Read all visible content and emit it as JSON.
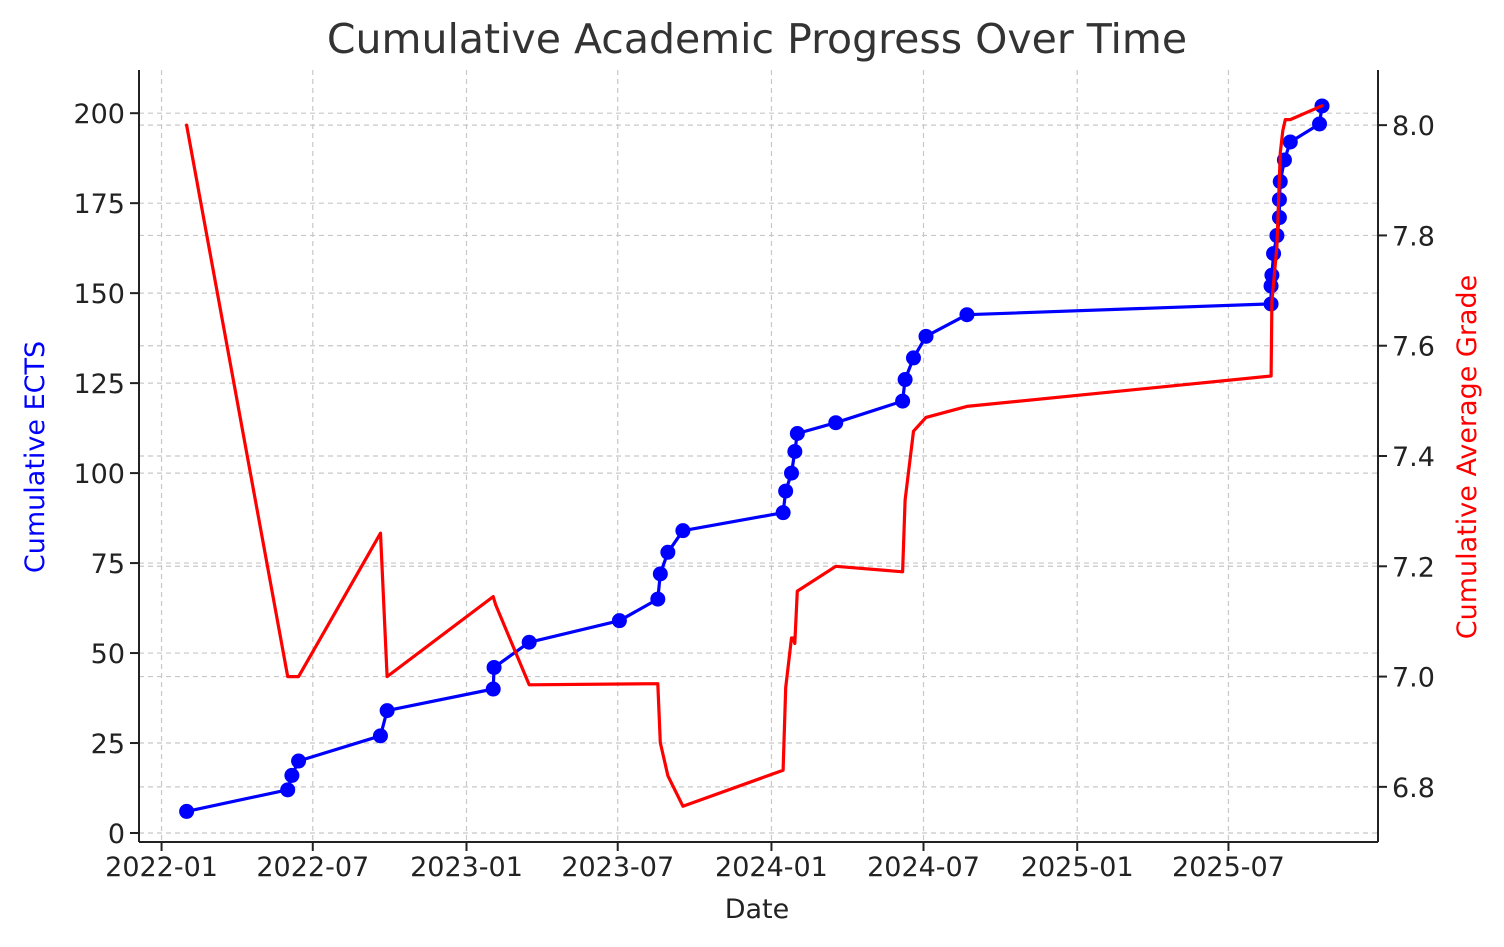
{
  "chart_data": {
    "type": "line",
    "title": "Cumulative Academic Progress Over Time",
    "xlabel": "Date",
    "ylabel_left": "Cumulative ECTS",
    "ylabel_right": "Cumulative Average Grade",
    "x_ticks": [
      "2022-01",
      "2022-07",
      "2023-01",
      "2023-07",
      "2024-01",
      "2024-07",
      "2025-01",
      "2025-07"
    ],
    "y_left_ticks": [
      0,
      25,
      50,
      75,
      100,
      125,
      150,
      175,
      200
    ],
    "y_right_ticks": [
      "6.8",
      "7.0",
      "7.2",
      "7.4",
      "7.6",
      "7.8",
      "8.0"
    ],
    "ylim_left": [
      -2.5,
      212
    ],
    "ylim_right": [
      6.7,
      8.1
    ],
    "xlim": [
      "2021-12-05",
      "2025-12-27"
    ],
    "grid": true,
    "colors": {
      "ects": "#0000ff",
      "grade": "#ff0000",
      "text": "#222222",
      "title": "#333333"
    },
    "series": [
      {
        "axis": "left",
        "markers": true,
        "points": [
          [
            "2022-01-31",
            6
          ],
          [
            "2022-06-01",
            12
          ],
          [
            "2022-06-06",
            16
          ],
          [
            "2022-06-14",
            20
          ],
          [
            "2022-09-20",
            27
          ],
          [
            "2022-09-28",
            34
          ],
          [
            "2023-02-02",
            40
          ],
          [
            "2023-02-03",
            46
          ],
          [
            "2023-03-17",
            53
          ],
          [
            "2023-07-03",
            59
          ],
          [
            "2023-08-18",
            65
          ],
          [
            "2023-08-21",
            72
          ],
          [
            "2023-08-30",
            78
          ],
          [
            "2023-09-17",
            84
          ],
          [
            "2024-01-15",
            89
          ],
          [
            "2024-01-18",
            95
          ],
          [
            "2024-01-25",
            100
          ],
          [
            "2024-01-29",
            106
          ],
          [
            "2024-02-01",
            111
          ],
          [
            "2024-03-18",
            114
          ],
          [
            "2024-06-06",
            120
          ],
          [
            "2024-06-09",
            126
          ],
          [
            "2024-06-19",
            132
          ],
          [
            "2024-07-04",
            138
          ],
          [
            "2024-08-22",
            144
          ],
          [
            "2025-08-21",
            147
          ],
          [
            "2025-08-21",
            152
          ],
          [
            "2025-08-22",
            155
          ],
          [
            "2025-08-24",
            161
          ],
          [
            "2025-08-28",
            166
          ],
          [
            "2025-08-31",
            171
          ],
          [
            "2025-08-31",
            176
          ],
          [
            "2025-09-01",
            181
          ],
          [
            "2025-09-06",
            187
          ],
          [
            "2025-09-13",
            192
          ],
          [
            "2025-10-18",
            197
          ],
          [
            "2025-10-21",
            202
          ]
        ]
      },
      {
        "axis": "right",
        "markers": false,
        "points": [
          [
            "2022-01-31",
            8.0
          ],
          [
            "2022-06-01",
            7.0
          ],
          [
            "2022-06-14",
            7.0
          ],
          [
            "2022-09-20",
            7.26
          ],
          [
            "2022-09-28",
            7.0
          ],
          [
            "2023-02-02",
            7.145
          ],
          [
            "2023-02-05",
            7.13
          ],
          [
            "2023-03-17",
            6.985
          ],
          [
            "2023-08-18",
            6.987
          ],
          [
            "2023-08-21",
            6.88
          ],
          [
            "2023-08-30",
            6.82
          ],
          [
            "2023-09-17",
            6.765
          ],
          [
            "2024-01-15",
            6.83
          ],
          [
            "2024-01-18",
            6.98
          ],
          [
            "2024-01-25",
            7.07
          ],
          [
            "2024-01-27",
            7.07
          ],
          [
            "2024-01-29",
            7.06
          ],
          [
            "2024-02-01",
            7.155
          ],
          [
            "2024-03-18",
            7.2
          ],
          [
            "2024-06-06",
            7.19
          ],
          [
            "2024-06-09",
            7.32
          ],
          [
            "2024-06-19",
            7.445
          ],
          [
            "2024-07-04",
            7.47
          ],
          [
            "2024-08-22",
            7.49
          ],
          [
            "2025-08-21",
            7.545
          ],
          [
            "2025-08-22",
            7.68
          ],
          [
            "2025-08-28",
            7.78
          ],
          [
            "2025-09-01",
            7.95
          ],
          [
            "2025-09-04",
            7.99
          ],
          [
            "2025-09-07",
            8.01
          ],
          [
            "2025-09-13",
            8.01
          ],
          [
            "2025-10-21",
            8.035
          ]
        ]
      }
    ]
  }
}
